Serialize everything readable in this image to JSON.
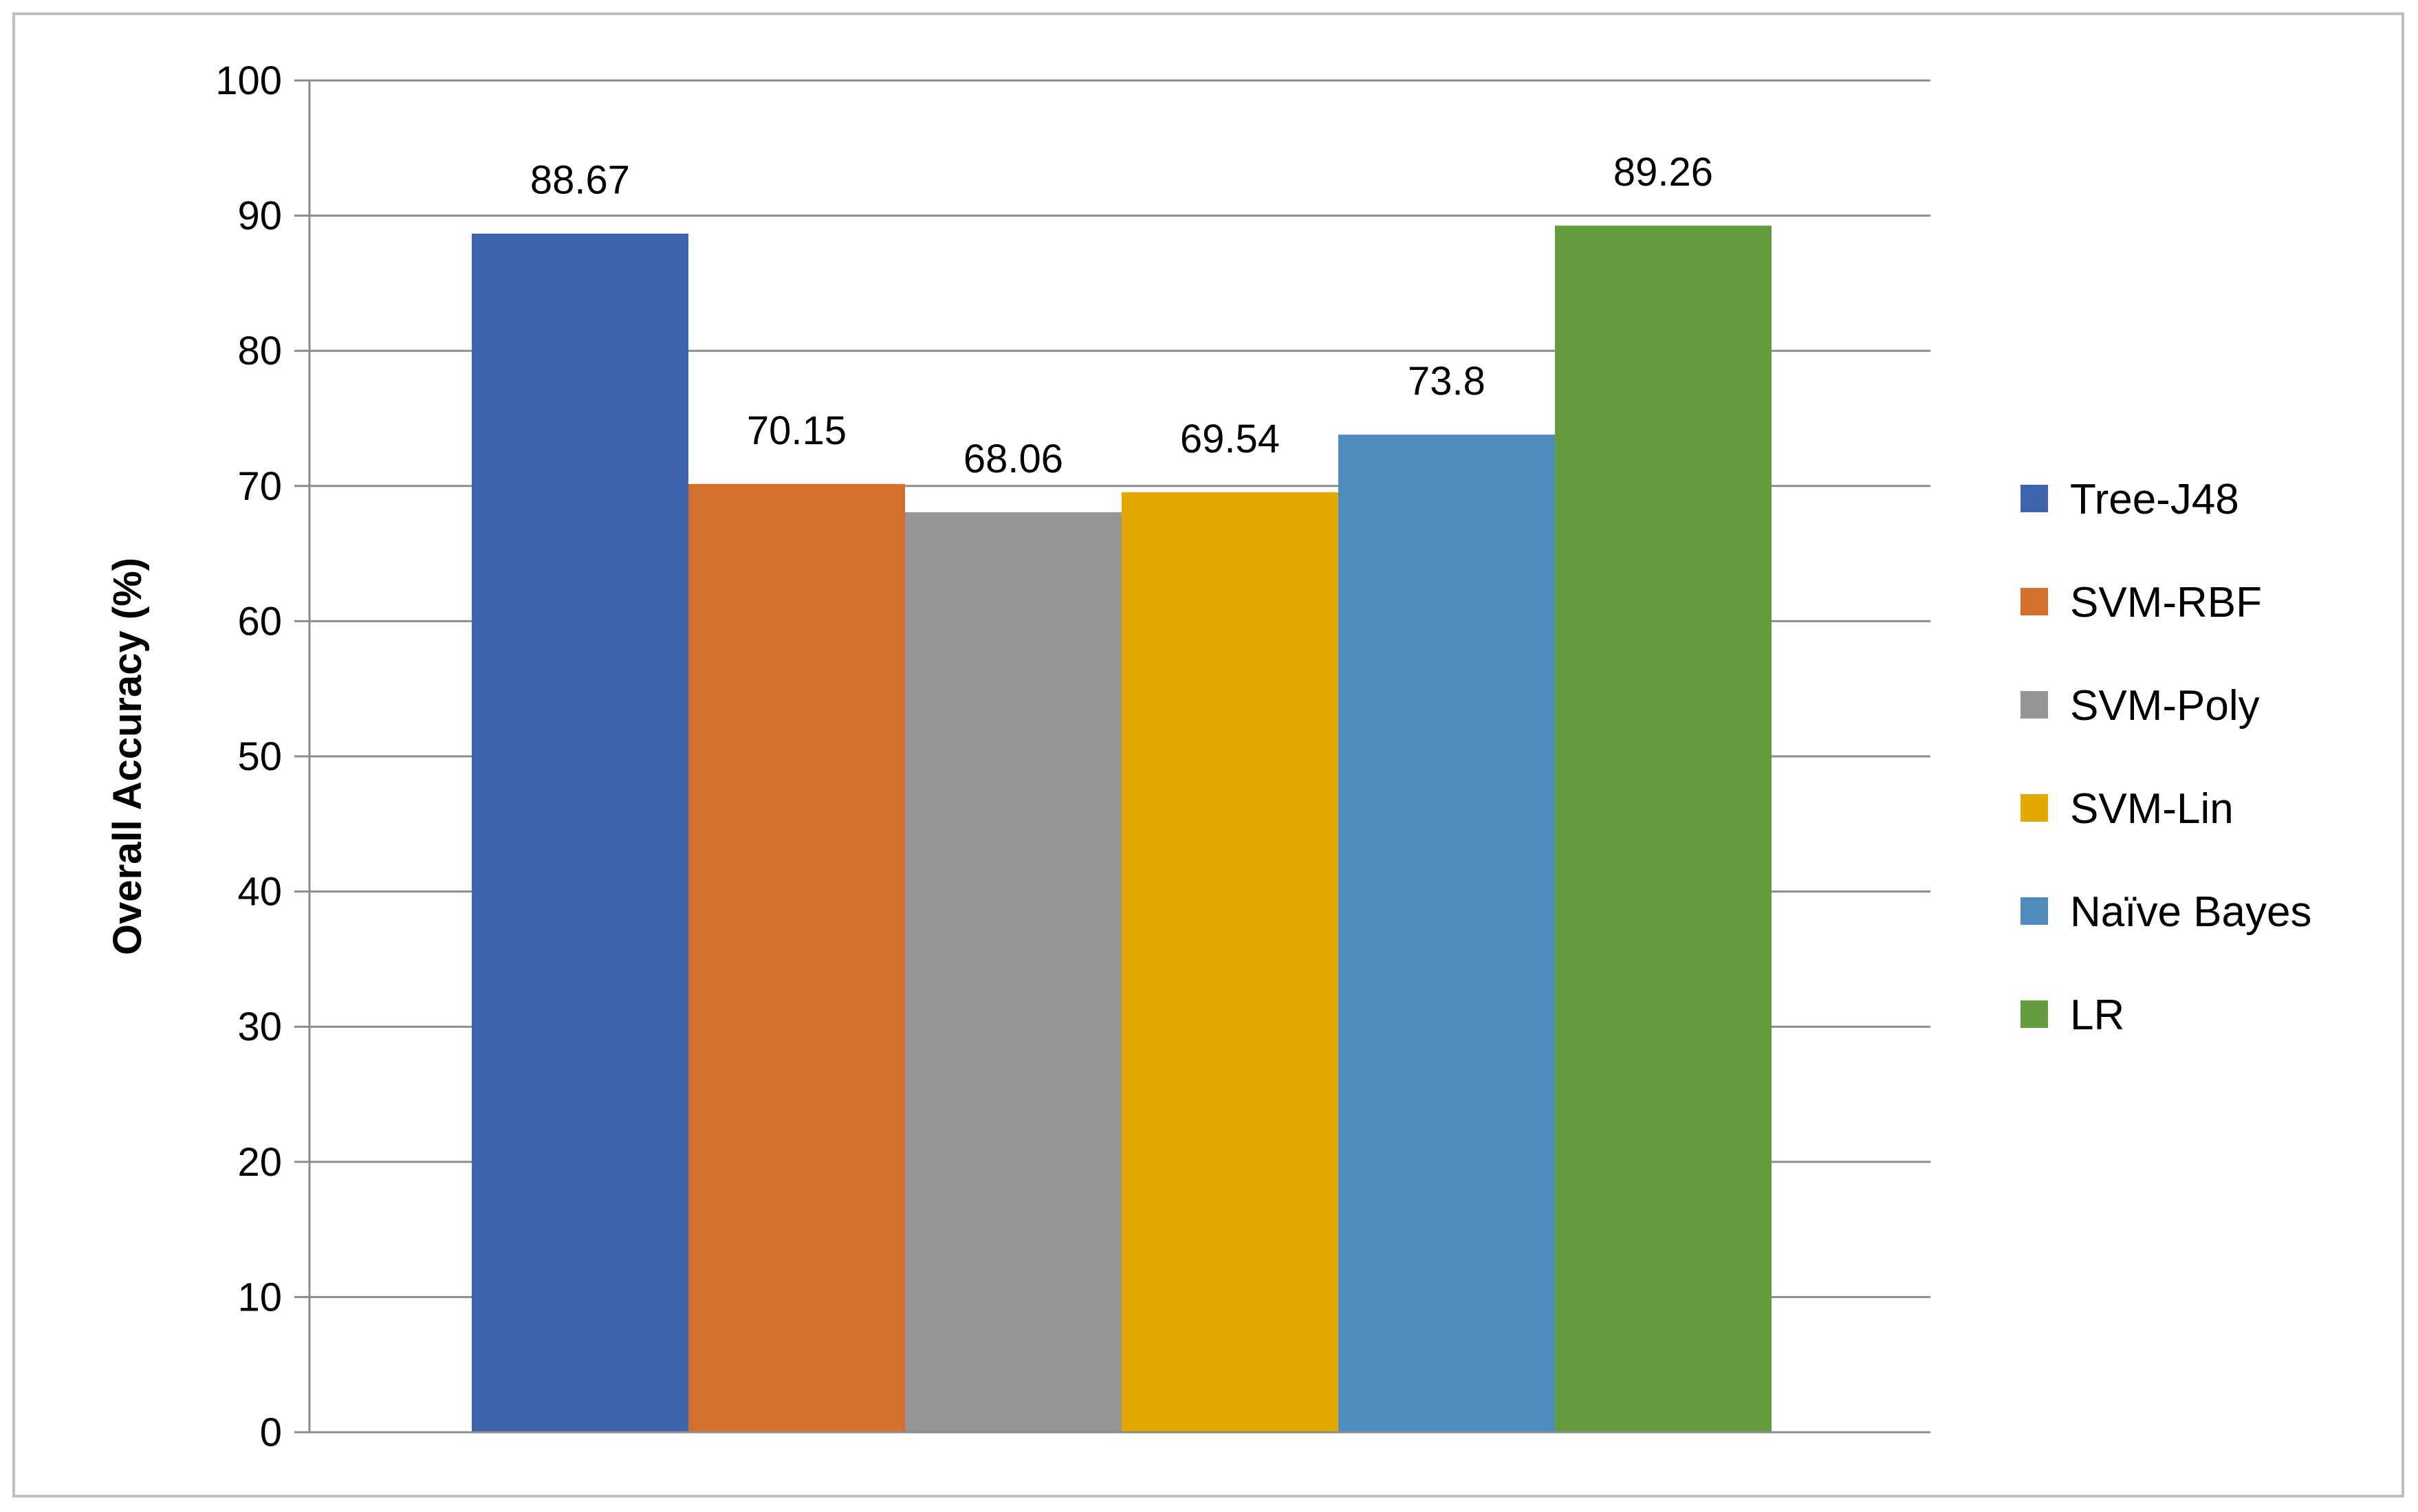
{
  "chart_data": {
    "type": "bar",
    "ylabel": "Overall Accuracy (%)",
    "ylim": [
      0,
      100
    ],
    "y_tick_step": 10,
    "grid": true,
    "legend_position": "right",
    "data_labels": [
      "88.67",
      "70.15",
      "68.06",
      "69.54",
      "73.8",
      "89.26"
    ],
    "series": [
      {
        "name": "Tree-J48",
        "value": 88.67,
        "color": "#3e64ad"
      },
      {
        "name": "SVM-RBF",
        "value": 70.15,
        "color": "#d46f2c"
      },
      {
        "name": "SVM-Poly",
        "value": 68.06,
        "color": "#969696"
      },
      {
        "name": "SVM-Lin",
        "value": 69.54,
        "color": "#e2aa00"
      },
      {
        "name": "Naïve Bayes",
        "value": 73.8,
        "color": "#508bbf"
      },
      {
        "name": "LR",
        "value": 89.26,
        "color": "#659c3f"
      }
    ]
  }
}
